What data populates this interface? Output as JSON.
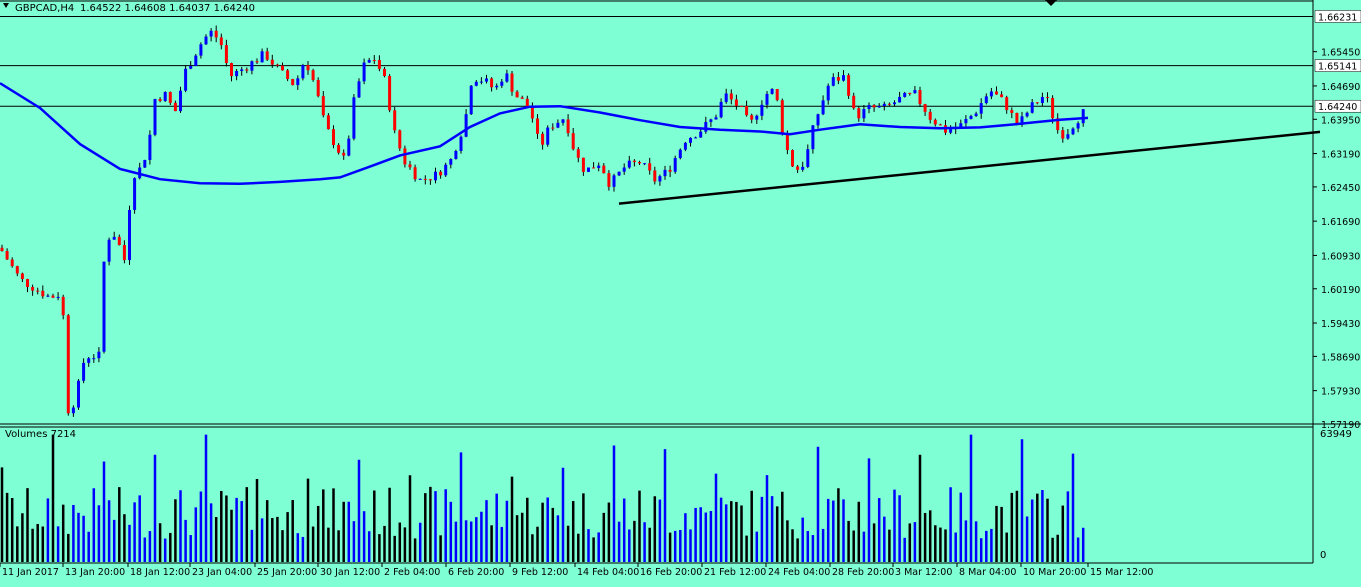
{
  "header": {
    "symbol": "GBPCAD,H4",
    "ohlc": "1.64522 1.64608 1.64037 1.64240",
    "collapse_icon": "triangle-down-icon"
  },
  "price_panel": {
    "ylim": [
      1.5719,
      1.6653
    ],
    "yticks": [
      "1.65450",
      "1.64690",
      "1.63950",
      "1.63190",
      "1.62450",
      "1.61690",
      "1.60930",
      "1.60190",
      "1.59430",
      "1.58690",
      "1.57930",
      "1.57190"
    ],
    "hlines": [
      {
        "value": 1.66231,
        "label": "1.66231"
      },
      {
        "value": 1.65141,
        "label": "1.65141"
      },
      {
        "value": 1.6424,
        "label": "1.64240"
      }
    ],
    "trendline": [
      [
        619,
        1.6208
      ],
      [
        1320,
        1.6367
      ]
    ]
  },
  "volume_panel": {
    "label": "Volumes 7214",
    "max_label": "63949",
    "zero_label": "0"
  },
  "x_axis": {
    "ticks": [
      "11 Jan 2017",
      "13 Jan 20:00",
      "18 Jan 12:00",
      "23 Jan 04:00",
      "25 Jan 20:00",
      "30 Jan 12:00",
      "2 Feb 04:00",
      "6 Feb 20:00",
      "9 Feb 12:00",
      "14 Feb 04:00",
      "16 Feb 20:00",
      "21 Feb 12:00",
      "24 Feb 04:00",
      "28 Feb 20:00",
      "3 Mar 12:00",
      "8 Mar 04:00",
      "10 Mar 20:00",
      "15 Mar 12:00"
    ]
  },
  "colors": {
    "background": "#7fffd4",
    "bull": "#0000ff",
    "bear": "#ff0000",
    "candle_wick": "#000000",
    "ma": "#0000ff",
    "volume_up": "#000000",
    "volume_down": "#0000ff"
  },
  "chart_data": {
    "type": "candlestick",
    "title": "GBPCAD,H4",
    "x_range": [
      "11 Jan 2017",
      "15 Mar 2017 12:00"
    ],
    "price_anchors": [
      [
        0,
        1.611
      ],
      [
        20,
        1.604
      ],
      [
        50,
        1.6
      ],
      [
        62,
        1.601
      ],
      [
        68,
        1.575
      ],
      [
        75,
        1.577
      ],
      [
        85,
        1.587
      ],
      [
        100,
        1.587
      ],
      [
        105,
        1.613
      ],
      [
        115,
        1.614
      ],
      [
        125,
        1.608
      ],
      [
        132,
        1.627
      ],
      [
        140,
        1.6285
      ],
      [
        148,
        1.633
      ],
      [
        155,
        1.644
      ],
      [
        165,
        1.645
      ],
      [
        175,
        1.641
      ],
      [
        185,
        1.65
      ],
      [
        200,
        1.656
      ],
      [
        210,
        1.659
      ],
      [
        220,
        1.657
      ],
      [
        230,
        1.649
      ],
      [
        245,
        1.651
      ],
      [
        265,
        1.654
      ],
      [
        280,
        1.65
      ],
      [
        295,
        1.647
      ],
      [
        305,
        1.653
      ],
      [
        315,
        1.647
      ],
      [
        325,
        1.638
      ],
      [
        345,
        1.63
      ],
      [
        355,
        1.645
      ],
      [
        365,
        1.652
      ],
      [
        375,
        1.653
      ],
      [
        385,
        1.648
      ],
      [
        395,
        1.636
      ],
      [
        405,
        1.63
      ],
      [
        420,
        1.626
      ],
      [
        435,
        1.627
      ],
      [
        450,
        1.63
      ],
      [
        465,
        1.639
      ],
      [
        472,
        1.649
      ],
      [
        485,
        1.648
      ],
      [
        495,
        1.646
      ],
      [
        505,
        1.65
      ],
      [
        515,
        1.645
      ],
      [
        530,
        1.642
      ],
      [
        540,
        1.633
      ],
      [
        550,
        1.638
      ],
      [
        565,
        1.64
      ],
      [
        575,
        1.632
      ],
      [
        585,
        1.628
      ],
      [
        600,
        1.63
      ],
      [
        610,
        1.625
      ],
      [
        625,
        1.629
      ],
      [
        640,
        1.63
      ],
      [
        655,
        1.626
      ],
      [
        668,
        1.628
      ],
      [
        685,
        1.635
      ],
      [
        700,
        1.637
      ],
      [
        715,
        1.64
      ],
      [
        725,
        1.645
      ],
      [
        740,
        1.642
      ],
      [
        750,
        1.638
      ],
      [
        765,
        1.645
      ],
      [
        775,
        1.646
      ],
      [
        785,
        1.634
      ],
      [
        795,
        1.628
      ],
      [
        805,
        1.63
      ],
      [
        815,
        1.639
      ],
      [
        830,
        1.648
      ],
      [
        845,
        1.649
      ],
      [
        855,
        1.64
      ],
      [
        870,
        1.642
      ],
      [
        885,
        1.642
      ],
      [
        900,
        1.644
      ],
      [
        915,
        1.645
      ],
      [
        930,
        1.64
      ],
      [
        945,
        1.637
      ],
      [
        960,
        1.638
      ],
      [
        975,
        1.641
      ],
      [
        990,
        1.646
      ],
      [
        1005,
        1.643
      ],
      [
        1018,
        1.638
      ],
      [
        1030,
        1.642
      ],
      [
        1045,
        1.645
      ],
      [
        1058,
        1.637
      ],
      [
        1065,
        1.636
      ],
      [
        1075,
        1.639
      ],
      [
        1088,
        1.642
      ]
    ],
    "moving_average": [
      [
        0,
        1.6475
      ],
      [
        40,
        1.642
      ],
      [
        80,
        1.634
      ],
      [
        120,
        1.6285
      ],
      [
        160,
        1.6262
      ],
      [
        200,
        1.6253
      ],
      [
        240,
        1.6252
      ],
      [
        280,
        1.6256
      ],
      [
        320,
        1.6262
      ],
      [
        340,
        1.6266
      ],
      [
        370,
        1.629
      ],
      [
        400,
        1.6315
      ],
      [
        440,
        1.6335
      ],
      [
        470,
        1.6378
      ],
      [
        500,
        1.6408
      ],
      [
        530,
        1.6423
      ],
      [
        560,
        1.6424
      ],
      [
        600,
        1.641
      ],
      [
        640,
        1.6393
      ],
      [
        680,
        1.6378
      ],
      [
        720,
        1.6372
      ],
      [
        760,
        1.6368
      ],
      [
        790,
        1.6362
      ],
      [
        820,
        1.6372
      ],
      [
        860,
        1.6384
      ],
      [
        900,
        1.6378
      ],
      [
        940,
        1.6375
      ],
      [
        980,
        1.6377
      ],
      [
        1020,
        1.6385
      ],
      [
        1060,
        1.6394
      ],
      [
        1088,
        1.6398
      ]
    ],
    "volume_ylim": [
      0,
      63949
    ]
  }
}
